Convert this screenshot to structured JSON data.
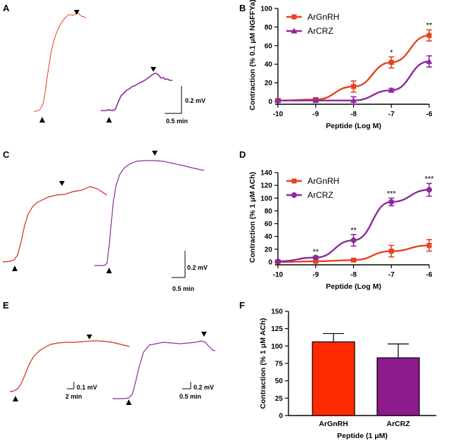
{
  "panels": [
    "A",
    "B",
    "C",
    "D",
    "E",
    "F"
  ],
  "colors": {
    "ArGnRH": "#e8411d",
    "ArCRZ": "#8b2a9b",
    "bar_ArGnRH": "#ff2a00",
    "bar_ArCRZ": "#8b1a8b"
  },
  "traces": {
    "A": {
      "scalebar": {
        "y": "0.2 mV",
        "x": "0.5 min"
      }
    },
    "C": {
      "scalebar": {
        "y": "0.2 mV",
        "x": "0.5 min"
      }
    },
    "E": {
      "scalebar_left": {
        "y": "0.1 mV",
        "x": "2 min"
      },
      "scalebar_right": {
        "y": "0.2 mV",
        "x": "0.5 min"
      }
    }
  },
  "chart_data": [
    {
      "panel": "B",
      "type": "line",
      "xlabel": "Peptide (Log M)",
      "ylabel": "Contraction (% 0.1 μM NGFFYa)",
      "xlim": [
        -10,
        -6
      ],
      "ylim": [
        0,
        100
      ],
      "xticks": [
        "-10",
        "-9",
        "-8",
        "-7",
        "-6"
      ],
      "yticks": [
        "0",
        "20",
        "40",
        "60",
        "80",
        "100"
      ],
      "legend_position": "top-left",
      "series": [
        {
          "name": "ArGnRH",
          "marker": "square",
          "x": [
            -10,
            -9,
            -8,
            -7,
            -6
          ],
          "y": [
            1,
            2,
            16,
            42,
            71
          ],
          "err": [
            2,
            2,
            6,
            6,
            6
          ]
        },
        {
          "name": "ArCRZ",
          "marker": "triangle",
          "x": [
            -10,
            -9,
            -8,
            -7,
            -6
          ],
          "y": [
            1,
            1,
            1,
            12,
            43
          ],
          "err": [
            1,
            2,
            4,
            2,
            6
          ]
        }
      ],
      "annotations": [
        {
          "x": -7,
          "y": 50,
          "text": "*"
        },
        {
          "x": -6,
          "y": 79,
          "text": "**"
        }
      ]
    },
    {
      "panel": "D",
      "type": "line",
      "xlabel": "Peptide (Log M)",
      "ylabel": "Contraction (% 1 μM ACh)",
      "xlim": [
        -10,
        -6
      ],
      "ylim": [
        0,
        140
      ],
      "xticks": [
        "-10",
        "-9",
        "-8",
        "-7",
        "-6"
      ],
      "yticks": [
        "0",
        "20",
        "40",
        "60",
        "80",
        "100",
        "120",
        "140"
      ],
      "legend_position": "top-left",
      "series": [
        {
          "name": "ArGnRH",
          "marker": "square",
          "x": [
            -10,
            -9,
            -8,
            -7,
            -6
          ],
          "y": [
            0,
            1,
            3,
            17,
            26
          ],
          "err": [
            1,
            1,
            2,
            9,
            9
          ]
        },
        {
          "name": "ArCRZ",
          "marker": "circle",
          "x": [
            -10,
            -9,
            -8,
            -7,
            -6
          ],
          "y": [
            1,
            7,
            34,
            94,
            113
          ],
          "err": [
            2,
            2,
            9,
            6,
            10
          ]
        }
      ],
      "annotations": [
        {
          "x": -9,
          "y": 12,
          "text": "**"
        },
        {
          "x": -8,
          "y": 46,
          "text": "**"
        },
        {
          "x": -7,
          "y": 103,
          "text": "***"
        },
        {
          "x": -6,
          "y": 126,
          "text": "***"
        }
      ]
    },
    {
      "panel": "F",
      "type": "bar",
      "xlabel": "Peptide (1 μM)",
      "ylabel": "Contraction (% 1 μM ACh)",
      "ylim": [
        0,
        150
      ],
      "yticks": [
        "0",
        "25",
        "50",
        "75",
        "100",
        "125",
        "150"
      ],
      "categories": [
        "ArGnRH",
        "ArCRZ"
      ],
      "values": [
        106,
        83
      ],
      "err": [
        12,
        20
      ]
    }
  ]
}
